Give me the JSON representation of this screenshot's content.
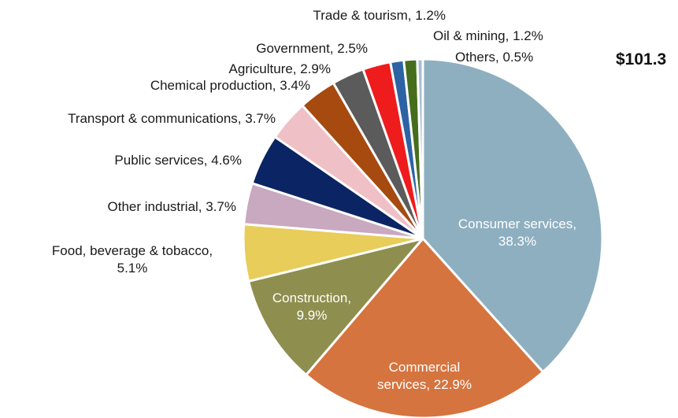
{
  "total_label": "$101.3",
  "chart_data": {
    "type": "pie",
    "start": "12 o'clock, clockwise",
    "slices": [
      {
        "lines": [
          "Consumer services,",
          "38.3%"
        ],
        "value": 38.3,
        "color": "#8eafbf",
        "inside": true
      },
      {
        "lines": [
          "Commercial",
          "services, 22.9%"
        ],
        "value": 22.9,
        "color": "#d5743e",
        "inside": true
      },
      {
        "lines": [
          "Construction,",
          "9.9%"
        ],
        "value": 9.9,
        "color": "#8e8e4f",
        "inside": true
      },
      {
        "lines": [
          "Food, beverage & tobacco,",
          "5.1%"
        ],
        "value": 5.1,
        "color": "#e8cd5a"
      },
      {
        "lines": [
          "Other industrial, 3.7%"
        ],
        "value": 3.7,
        "color": "#c9a9bf"
      },
      {
        "lines": [
          "Public services, 4.6%"
        ],
        "value": 4.6,
        "color": "#0b2463"
      },
      {
        "lines": [
          "Transport & communications, 3.7%"
        ],
        "value": 3.7,
        "color": "#f0c0c7"
      },
      {
        "lines": [
          "Chemical production, 3.4%"
        ],
        "value": 3.4,
        "color": "#a64a10"
      },
      {
        "lines": [
          "Agriculture, 2.9%"
        ],
        "value": 2.9,
        "color": "#5b5b5b"
      },
      {
        "lines": [
          "Government, 2.5%"
        ],
        "value": 2.5,
        "color": "#ee1c1c"
      },
      {
        "lines": [
          "Trade & tourism, 1.2%"
        ],
        "value": 1.2,
        "color": "#2d63a4"
      },
      {
        "lines": [
          "Oil & mining, 1.2%"
        ],
        "value": 1.2,
        "color": "#466d1d"
      },
      {
        "lines": [
          "Others, 0.5%"
        ],
        "value": 0.5,
        "color": "#aabcd4"
      }
    ]
  }
}
